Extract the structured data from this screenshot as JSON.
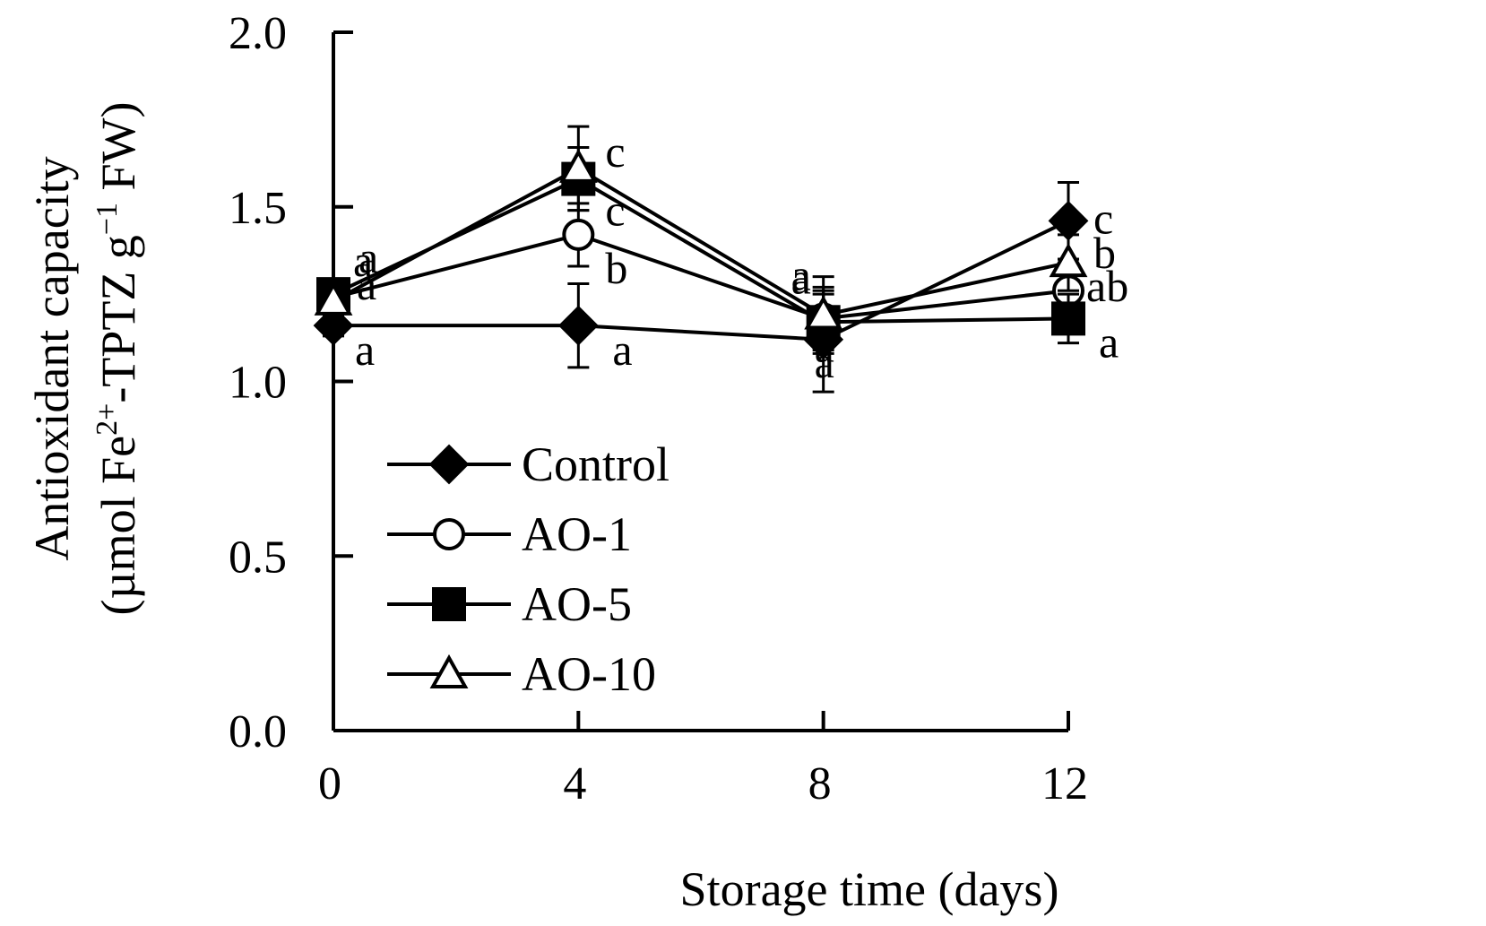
{
  "chart_data": {
    "type": "line",
    "xlabel": "Storage time (days)",
    "ylabel_line1": "Antioxidant capacity",
    "ylabel_line2": {
      "prefix": "(µmol Fe",
      "sup1": "2+",
      "middle": "-TPTZ g",
      "sup2": "−1",
      "suffix": " FW)"
    },
    "x": [
      0,
      4,
      8,
      12
    ],
    "x_ticks": [
      "0",
      "4",
      "8",
      "12"
    ],
    "ylim": [
      0.0,
      2.0
    ],
    "y_ticks": [
      "0.0",
      "0.5",
      "1.0",
      "1.5",
      "2.0"
    ],
    "legend_position": "lower-left",
    "series": [
      {
        "name": "Control",
        "marker": "filled-diamond",
        "values": [
          1.16,
          1.16,
          1.12,
          1.46
        ],
        "errors": [
          0.03,
          0.12,
          0.15,
          0.11
        ],
        "labels": [
          "a",
          "a",
          "a",
          "c"
        ]
      },
      {
        "name": "AO-1",
        "marker": "open-circle",
        "values": [
          1.24,
          1.42,
          1.18,
          1.26
        ],
        "errors": [
          0.03,
          0.09,
          0.08,
          0.09
        ],
        "labels": [
          "a",
          "b",
          "a",
          "ab"
        ]
      },
      {
        "name": "AO-5",
        "marker": "filled-square",
        "values": [
          1.25,
          1.58,
          1.17,
          1.18
        ],
        "errors": [
          0.03,
          0.09,
          0.08,
          0.07
        ],
        "labels": [
          "a",
          "c",
          "a",
          "a"
        ]
      },
      {
        "name": "AO-10",
        "marker": "open-triangle",
        "values": [
          1.23,
          1.61,
          1.19,
          1.34
        ],
        "errors": [
          0.03,
          0.12,
          0.11,
          0.08
        ],
        "labels": [
          "a",
          "c",
          "a",
          "b"
        ]
      }
    ]
  }
}
